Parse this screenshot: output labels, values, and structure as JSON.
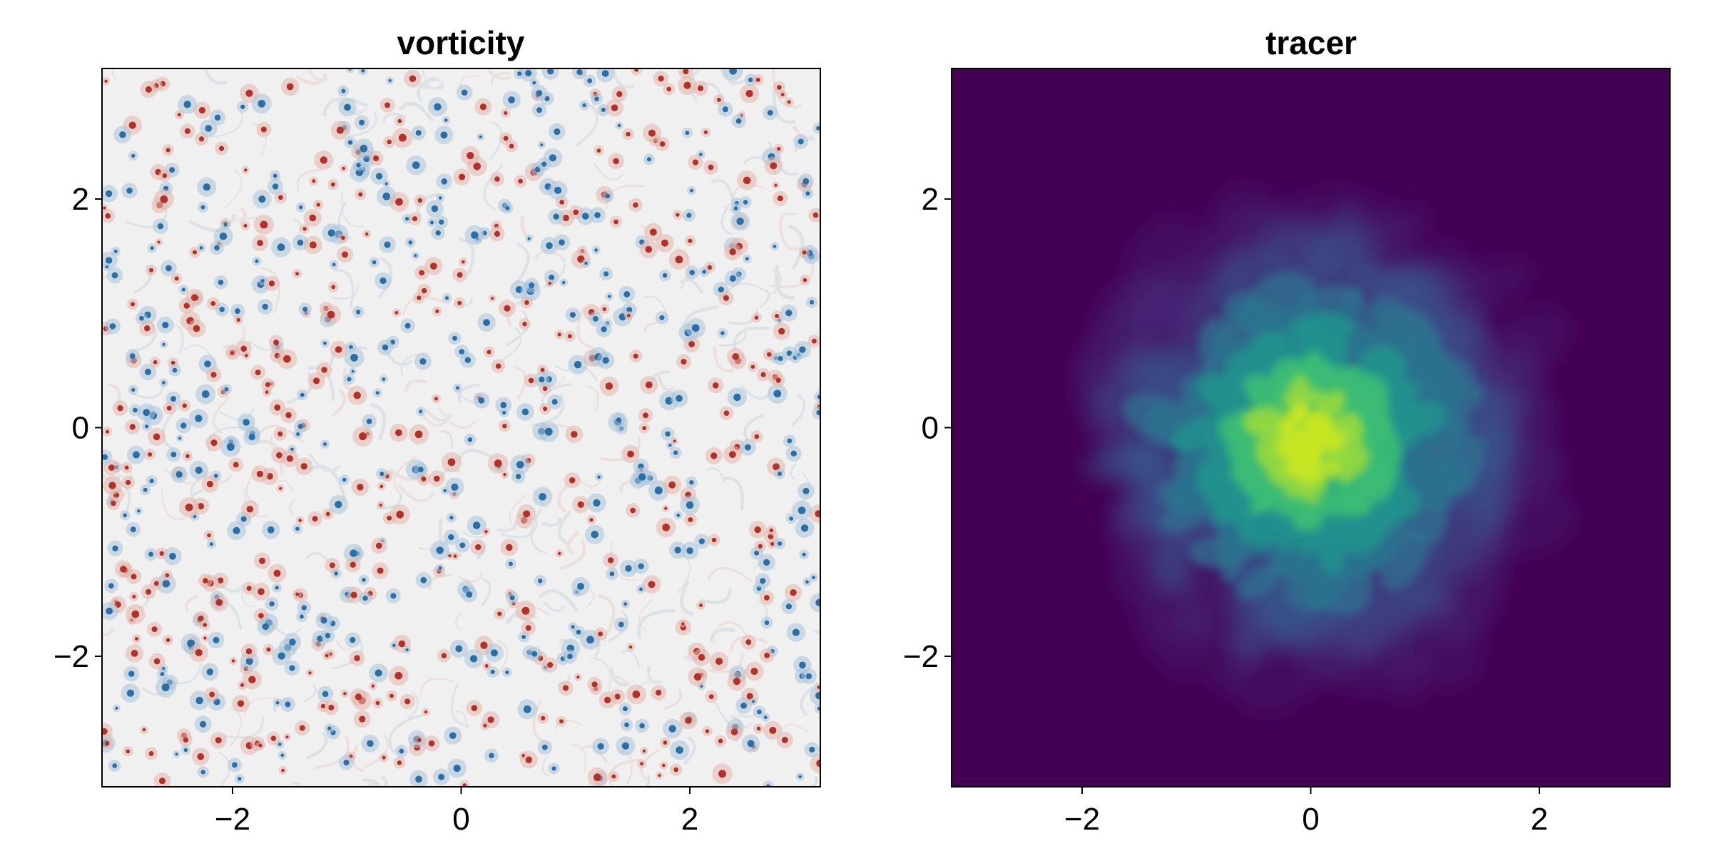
{
  "chart_data": [
    {
      "type": "heatmap",
      "title": "vorticity",
      "xlim": [
        -3.14159,
        3.14159
      ],
      "ylim": [
        -3.14159,
        3.14159
      ],
      "xticks": [
        -2,
        0,
        2
      ],
      "yticks": [
        -2,
        0,
        2
      ],
      "xtick_labels": [
        "−2",
        "0",
        "2"
      ],
      "ytick_labels": [
        "−2",
        "0",
        "2"
      ],
      "colormap": "balance",
      "colors": {
        "background": "#f2f1f1",
        "positive": "#b2322b",
        "negative": "#2c6fa6"
      },
      "grid": false
    },
    {
      "type": "heatmap",
      "title": "tracer",
      "xlim": [
        -3.14159,
        3.14159
      ],
      "ylim": [
        -3.14159,
        3.14159
      ],
      "xticks": [
        -2,
        0,
        2
      ],
      "yticks": [
        -2,
        0,
        2
      ],
      "xtick_labels": [
        "−2",
        "0",
        "2"
      ],
      "ytick_labels": [
        "−2",
        "0",
        "2"
      ],
      "colormap": "viridis",
      "colors": {
        "background": "#440154",
        "mid": "#21908d",
        "high": "#c6e522"
      },
      "grid": false
    }
  ]
}
